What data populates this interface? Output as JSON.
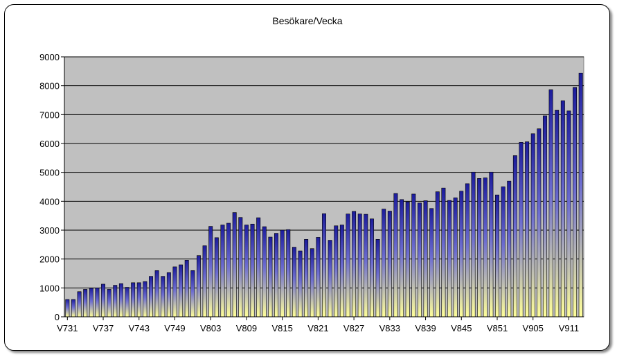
{
  "chart_data": {
    "type": "bar",
    "title": "Besökare/Vecka",
    "xlabel": "",
    "ylabel": "",
    "ylim": [
      0,
      9000
    ],
    "yticks": [
      0,
      1000,
      2000,
      3000,
      4000,
      5000,
      6000,
      7000,
      8000,
      9000
    ],
    "grid": true,
    "legend": "none",
    "categories": [
      "V731",
      "V732",
      "V733",
      "V734",
      "V735",
      "V736",
      "V737",
      "V738",
      "V739",
      "V740",
      "V741",
      "V742",
      "V743",
      "V744",
      "V745",
      "V746",
      "V747",
      "V748",
      "V749",
      "V750",
      "V751",
      "V752",
      "V801",
      "V802",
      "V803",
      "V804",
      "V805",
      "V806",
      "V807",
      "V808",
      "V809",
      "V810",
      "V811",
      "V812",
      "V813",
      "V814",
      "V815",
      "V816",
      "V817",
      "V818",
      "V819",
      "V820",
      "V821",
      "V822",
      "V823",
      "V824",
      "V825",
      "V826",
      "V827",
      "V828",
      "V829",
      "V830",
      "V831",
      "V832",
      "V833",
      "V834",
      "V835",
      "V836",
      "V837",
      "V838",
      "V839",
      "V840",
      "V841",
      "V842",
      "V843",
      "V844",
      "V845",
      "V846",
      "V847",
      "V848",
      "V849",
      "V850",
      "V851",
      "V852",
      "V901",
      "V902",
      "V903",
      "V904",
      "V905",
      "V906",
      "V907",
      "V908",
      "V909",
      "V910",
      "V911",
      "V912",
      "V913"
    ],
    "visible_tick_labels": [
      "V731",
      "V737",
      "V743",
      "V749",
      "V803",
      "V809",
      "V815",
      "V821",
      "V827",
      "V833",
      "V839",
      "V845",
      "V851",
      "V905",
      "V911"
    ],
    "values": [
      600,
      600,
      870,
      950,
      990,
      1000,
      1130,
      950,
      1090,
      1150,
      1020,
      1180,
      1180,
      1220,
      1400,
      1600,
      1400,
      1530,
      1730,
      1800,
      1960,
      1600,
      2120,
      2460,
      3130,
      2740,
      3180,
      3240,
      3610,
      3440,
      3180,
      3210,
      3430,
      3120,
      2760,
      2890,
      3000,
      3020,
      2410,
      2280,
      2680,
      2360,
      2750,
      3570,
      2650,
      3150,
      3180,
      3560,
      3650,
      3560,
      3550,
      3390,
      2680,
      3730,
      3660,
      4270,
      4060,
      3980,
      4250,
      3940,
      4020,
      3750,
      4330,
      4460,
      4030,
      4120,
      4350,
      4610,
      5010,
      4790,
      4810,
      5010,
      4220,
      4500,
      4700,
      5580,
      6040,
      6060,
      6340,
      6510,
      6960,
      7860,
      7150,
      7480,
      7130,
      7940,
      8440
    ],
    "colors": {
      "plot_background": "#c0c0c0",
      "bar_top": "#1c1c9c",
      "bar_bottom": "#ffff9a",
      "gridline": "#000000"
    }
  }
}
